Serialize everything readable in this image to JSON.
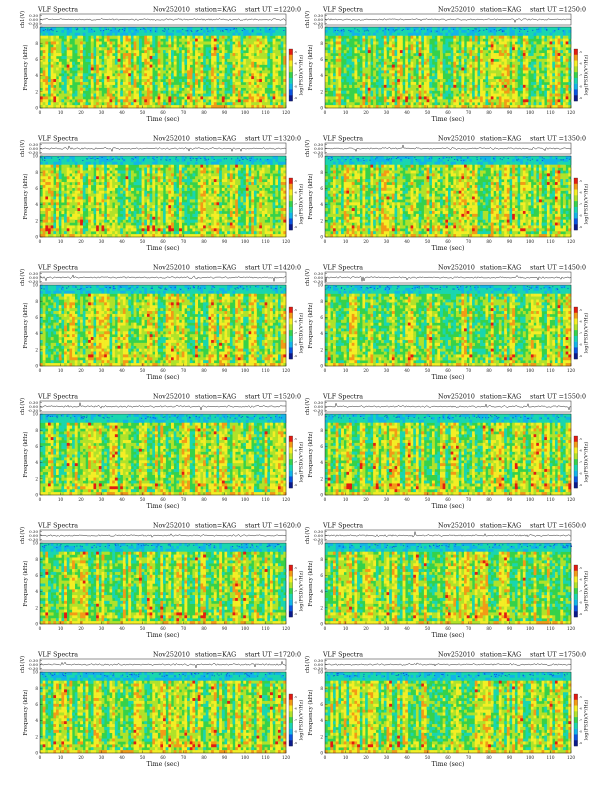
{
  "palette": [
    "#0b1a8c",
    "#0a55e0",
    "#12b4e8",
    "#19d6b0",
    "#36d24a",
    "#b0e22a",
    "#f4ee25",
    "#f39a16",
    "#e21b12"
  ],
  "chart_data": [
    {
      "type": "heatmap",
      "title": "VLF Spectra",
      "date": "Nov252010",
      "station": "station=KAG",
      "start": "start  UT =1220:0",
      "ch_label": "ch1(V)",
      "ch_ticks": [
        "0.30",
        "0.00",
        "-0.30"
      ],
      "ylabel": "Frequency (kHz)",
      "xlabel": "Time (sec)",
      "x_ticks": [
        "0",
        "10",
        "20",
        "30",
        "40",
        "50",
        "60",
        "70",
        "80",
        "90",
        "100",
        "110",
        "120"
      ],
      "y_ticks": [
        "0",
        "2",
        "4",
        "6",
        "8",
        "10"
      ],
      "xlim": [
        0,
        120
      ],
      "ylim": [
        0,
        10
      ],
      "colorbar_label": "log(PSD)(V²/Hz)",
      "colorbar_ticks": [
        "-5",
        "-6",
        "-7",
        "-8",
        "-9"
      ]
    },
    {
      "type": "heatmap",
      "title": "VLF Spectra",
      "date": "Nov252010",
      "station": "station=KAG",
      "start": "start  UT =1250:0",
      "ch_label": "ch1(V)",
      "ch_ticks": [
        "0.30",
        "0.00",
        "-0.30"
      ],
      "ylabel": "Frequency (kHz)",
      "xlabel": "Time (sec)",
      "x_ticks": [
        "0",
        "10",
        "20",
        "30",
        "40",
        "50",
        "60",
        "70",
        "80",
        "90",
        "100",
        "110",
        "120"
      ],
      "y_ticks": [
        "0",
        "2",
        "4",
        "6",
        "8",
        "10"
      ],
      "xlim": [
        0,
        120
      ],
      "ylim": [
        0,
        10
      ],
      "colorbar_label": "log(PSD)(V²/Hz)",
      "colorbar_ticks": [
        "-5",
        "-6",
        "-7",
        "-8",
        "-9"
      ]
    },
    {
      "type": "heatmap",
      "title": "VLF Spectra",
      "date": "Nov252010",
      "station": "station=KAG",
      "start": "start  UT =1320:0",
      "ch_label": "ch1(V)",
      "ch_ticks": [
        "0.30",
        "0.00",
        "-0.30"
      ],
      "ylabel": "Frequency (kHz)",
      "xlabel": "Time (sec)",
      "x_ticks": [
        "0",
        "10",
        "20",
        "30",
        "40",
        "50",
        "60",
        "70",
        "80",
        "90",
        "100",
        "110",
        "120"
      ],
      "y_ticks": [
        "0",
        "2",
        "4",
        "6",
        "8",
        "10"
      ],
      "xlim": [
        0,
        120
      ],
      "ylim": [
        0,
        10
      ],
      "colorbar_label": "log(PSD)(V²/Hz)",
      "colorbar_ticks": [
        "-5",
        "-6",
        "-7",
        "-8",
        "-9"
      ]
    },
    {
      "type": "heatmap",
      "title": "VLF Spectra",
      "date": "Nov252010",
      "station": "station=KAG",
      "start": "start  UT =1350:0",
      "ch_label": "ch1(V)",
      "ch_ticks": [
        "0.30",
        "0.00",
        "-0.30"
      ],
      "ylabel": "Frequency (kHz)",
      "xlabel": "Time (sec)",
      "x_ticks": [
        "0",
        "10",
        "20",
        "30",
        "40",
        "50",
        "60",
        "70",
        "80",
        "90",
        "100",
        "110",
        "120"
      ],
      "y_ticks": [
        "0",
        "2",
        "4",
        "6",
        "8",
        "10"
      ],
      "xlim": [
        0,
        120
      ],
      "ylim": [
        0,
        10
      ],
      "colorbar_label": "log(PSD)(V²/Hz)",
      "colorbar_ticks": [
        "-5",
        "-6",
        "-7",
        "-8",
        "-9"
      ]
    },
    {
      "type": "heatmap",
      "title": "VLF Spectra",
      "date": "Nov252010",
      "station": "station=KAG",
      "start": "start  UT =1420:0",
      "ch_label": "ch1(V)",
      "ch_ticks": [
        "0.30",
        "0.00",
        "-0.30"
      ],
      "ylabel": "Frequency (kHz)",
      "xlabel": "Time (sec)",
      "x_ticks": [
        "0",
        "10",
        "20",
        "30",
        "40",
        "50",
        "60",
        "70",
        "80",
        "90",
        "100",
        "110",
        "120"
      ],
      "y_ticks": [
        "0",
        "2",
        "4",
        "6",
        "8",
        "10"
      ],
      "xlim": [
        0,
        120
      ],
      "ylim": [
        0,
        10
      ],
      "colorbar_label": "log(PSD)(V²/Hz)",
      "colorbar_ticks": [
        "-5",
        "-6",
        "-7",
        "-8",
        "-9"
      ]
    },
    {
      "type": "heatmap",
      "title": "VLF Spectra",
      "date": "Nov252010",
      "station": "station=KAG",
      "start": "start  UT =1450:0",
      "ch_label": "ch1(V)",
      "ch_ticks": [
        "0.30",
        "0.00",
        "-0.30"
      ],
      "ylabel": "Frequency (kHz)",
      "xlabel": "Time (sec)",
      "x_ticks": [
        "0",
        "10",
        "20",
        "30",
        "40",
        "50",
        "60",
        "70",
        "80",
        "90",
        "100",
        "110",
        "120"
      ],
      "y_ticks": [
        "0",
        "2",
        "4",
        "6",
        "8",
        "10"
      ],
      "xlim": [
        0,
        120
      ],
      "ylim": [
        0,
        10
      ],
      "colorbar_label": "log(PSD)(V²/Hz)",
      "colorbar_ticks": [
        "-5",
        "-6",
        "-7",
        "-8",
        "-9"
      ]
    },
    {
      "type": "heatmap",
      "title": "VLF Spectra",
      "date": "Nov252010",
      "station": "station=KAG",
      "start": "start  UT =1520:0",
      "ch_label": "ch1(V)",
      "ch_ticks": [
        "0.30",
        "0.00",
        "-0.30"
      ],
      "ylabel": "Frequency (kHz)",
      "xlabel": "Time (sec)",
      "x_ticks": [
        "0",
        "10",
        "20",
        "30",
        "40",
        "50",
        "60",
        "70",
        "80",
        "90",
        "100",
        "110",
        "120"
      ],
      "y_ticks": [
        "0",
        "2",
        "4",
        "6",
        "8",
        "10"
      ],
      "xlim": [
        0,
        120
      ],
      "ylim": [
        0,
        10
      ],
      "colorbar_label": "log(PSD)(V²/Hz)",
      "colorbar_ticks": [
        "-5",
        "-6",
        "-7",
        "-8",
        "-9"
      ]
    },
    {
      "type": "heatmap",
      "title": "VLF Spectra",
      "date": "Nov252010",
      "station": "station=KAG",
      "start": "start  UT =1550:0",
      "ch_label": "ch1(V)",
      "ch_ticks": [
        "0.30",
        "0.00",
        "-0.30"
      ],
      "ylabel": "Frequency (kHz)",
      "xlabel": "Time (sec)",
      "x_ticks": [
        "0",
        "10",
        "20",
        "30",
        "40",
        "50",
        "60",
        "70",
        "80",
        "90",
        "100",
        "110",
        "120"
      ],
      "y_ticks": [
        "0",
        "2",
        "4",
        "6",
        "8",
        "10"
      ],
      "xlim": [
        0,
        120
      ],
      "ylim": [
        0,
        10
      ],
      "colorbar_label": "log(PSD)(V²/Hz)",
      "colorbar_ticks": [
        "-5",
        "-6",
        "-7",
        "-8",
        "-9"
      ]
    },
    {
      "type": "heatmap",
      "title": "VLF Spectra",
      "date": "Nov252010",
      "station": "station=KAG",
      "start": "start  UT =1620:0",
      "ch_label": "ch1(V)",
      "ch_ticks": [
        "0.30",
        "0.00",
        "-0.30"
      ],
      "ylabel": "Frequency (kHz)",
      "xlabel": "Time (sec)",
      "x_ticks": [
        "0",
        "10",
        "20",
        "30",
        "40",
        "50",
        "60",
        "70",
        "80",
        "90",
        "100",
        "110",
        "120"
      ],
      "y_ticks": [
        "0",
        "2",
        "4",
        "6",
        "8",
        "10"
      ],
      "xlim": [
        0,
        120
      ],
      "ylim": [
        0,
        10
      ],
      "colorbar_label": "log(PSD)(V²/Hz)",
      "colorbar_ticks": [
        "-5",
        "-6",
        "-7",
        "-8",
        "-9"
      ]
    },
    {
      "type": "heatmap",
      "title": "VLF Spectra",
      "date": "Nov252010",
      "station": "station=KAG",
      "start": "start  UT =1650:0",
      "ch_label": "ch1(V)",
      "ch_ticks": [
        "0.30",
        "0.00",
        "-0.30"
      ],
      "ylabel": "Frequency (kHz)",
      "xlabel": "Time (sec)",
      "x_ticks": [
        "0",
        "10",
        "20",
        "30",
        "40",
        "50",
        "60",
        "70",
        "80",
        "90",
        "100",
        "110",
        "120"
      ],
      "y_ticks": [
        "0",
        "2",
        "4",
        "6",
        "8",
        "10"
      ],
      "xlim": [
        0,
        120
      ],
      "ylim": [
        0,
        10
      ],
      "colorbar_label": "log(PSD)(V²/Hz)",
      "colorbar_ticks": [
        "-5",
        "-6",
        "-7",
        "-8",
        "-9"
      ]
    },
    {
      "type": "heatmap",
      "title": "VLF Spectra",
      "date": "Nov252010",
      "station": "station=KAG",
      "start": "start  UT =1720:0",
      "ch_label": "ch1(V)",
      "ch_ticks": [
        "0.30",
        "0.00",
        "-0.30"
      ],
      "ylabel": "Frequency (kHz)",
      "xlabel": "Time (sec)",
      "x_ticks": [
        "0",
        "10",
        "20",
        "30",
        "40",
        "50",
        "60",
        "70",
        "80",
        "90",
        "100",
        "110",
        "120"
      ],
      "y_ticks": [
        "0",
        "2",
        "4",
        "6",
        "8",
        "10"
      ],
      "xlim": [
        0,
        120
      ],
      "ylim": [
        0,
        10
      ],
      "colorbar_label": "log(PSD)(V²/Hz)",
      "colorbar_ticks": [
        "-5",
        "-6",
        "-7",
        "-8",
        "-9"
      ]
    },
    {
      "type": "heatmap",
      "title": "VLF Spectra",
      "date": "Nov252010",
      "station": "station=KAG",
      "start": "start  UT =1750:0",
      "ch_label": "ch1(V)",
      "ch_ticks": [
        "0.30",
        "0.00",
        "-0.30"
      ],
      "ylabel": "Frequency (kHz)",
      "xlabel": "Time (sec)",
      "x_ticks": [
        "0",
        "10",
        "20",
        "30",
        "40",
        "50",
        "60",
        "70",
        "80",
        "90",
        "100",
        "110",
        "120"
      ],
      "y_ticks": [
        "0",
        "2",
        "4",
        "6",
        "8",
        "10"
      ],
      "xlim": [
        0,
        120
      ],
      "ylim": [
        0,
        10
      ],
      "colorbar_label": "log(PSD)(V²/Hz)",
      "colorbar_ticks": [
        "-5",
        "-6",
        "-7",
        "-8",
        "-9"
      ]
    }
  ]
}
